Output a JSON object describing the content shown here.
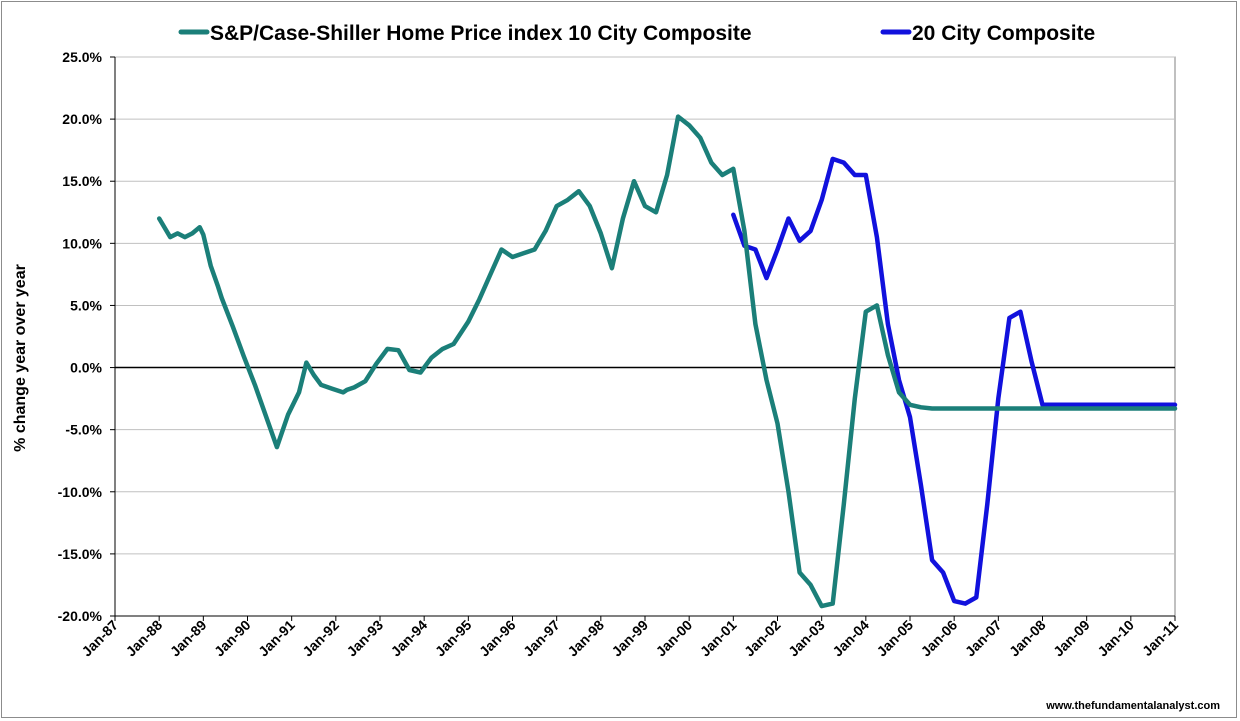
{
  "chart_data": {
    "type": "line",
    "title": "",
    "xlabel": "",
    "ylabel": "% change year over year",
    "ylim": [
      -20,
      25
    ],
    "y_ticks": [
      "25.0%",
      "20.0%",
      "15.0%",
      "10.0%",
      "5.0%",
      "0.0%",
      "-5.0%",
      "-10.0%",
      "-15.0%",
      "-20.0%"
    ],
    "x_ticks": [
      "Jan-87",
      "Jan-88",
      "Jan-89",
      "Jan-90",
      "Jan-91",
      "Jan-92",
      "Jan-93",
      "Jan-94",
      "Jan-95",
      "Jan-96",
      "Jan-97",
      "Jan-98",
      "Jan-99",
      "Jan-00",
      "Jan-01",
      "Jan-02",
      "Jan-03",
      "Jan-04",
      "Jan-05",
      "Jan-06",
      "Jan-07",
      "Jan-08",
      "Jan-09",
      "Jan-10",
      "Jan-11"
    ],
    "x_range": [
      "Jan-87",
      "Jan-11"
    ],
    "grid": "horizontal",
    "legend_position": "top",
    "colors": {
      "ten_city": "#1b7f79",
      "twenty_city": "#1111dd",
      "grid": "#c0c0c0",
      "zero_line": "#000000"
    },
    "series": [
      {
        "name": "S&P/Case-Shiller Home Price index 10 City Composite",
        "x": [
          "1988-01",
          "1988-04",
          "1988-06",
          "1988-08",
          "1988-10",
          "1988-12",
          "1989-01",
          "1989-03",
          "1989-05",
          "1989-06",
          "1989-09",
          "1989-12",
          "1990-03",
          "1990-06",
          "1990-09",
          "1990-12",
          "1991-03",
          "1991-05",
          "1991-07",
          "1991-09",
          "1991-12",
          "1992-03",
          "1992-04",
          "1992-06",
          "1992-09",
          "1992-12",
          "1993-03",
          "1993-06",
          "1993-09",
          "1993-12",
          "1994-03",
          "1994-06",
          "1994-09",
          "1994-11",
          "1995-01",
          "1995-04",
          "1995-07",
          "1995-10",
          "1996-01",
          "1996-04",
          "1996-07",
          "1996-10",
          "1997-01",
          "1997-04",
          "1997-07",
          "1997-10",
          "1998-01",
          "1998-04",
          "1998-07",
          "1998-10",
          "1999-01",
          "1999-04",
          "1999-07",
          "1999-10",
          "2000-01",
          "2000-04",
          "2000-07",
          "2000-10",
          "2001-01",
          "2001-04",
          "2001-07",
          "2001-10",
          "2002-01",
          "2002-04",
          "2002-07",
          "2002-10",
          "2003-01",
          "2003-04",
          "2003-07",
          "2003-10",
          "2004-01",
          "2004-04",
          "2004-07",
          "2004-10",
          "2005-01",
          "2005-04",
          "2005-07",
          "2005-10",
          "2006-01",
          "2006-04",
          "2006-07",
          "2006-10",
          "2007-01",
          "2007-04",
          "2007-07",
          "2007-10",
          "2008-01",
          "2008-04",
          "2008-07",
          "2008-10",
          "2009-01",
          "2009-04",
          "2009-07",
          "2009-10",
          "2010-01",
          "2010-04",
          "2010-07",
          "2010-10",
          "2011-01"
        ],
        "values": [
          12.0,
          10.5,
          10.8,
          10.5,
          10.8,
          11.3,
          10.7,
          8.2,
          6.5,
          5.6,
          3.3,
          0.9,
          -1.4,
          -3.9,
          -6.4,
          -3.8,
          -2.0,
          0.4,
          -0.6,
          -1.4,
          -1.7,
          -2.0,
          -1.8,
          -1.6,
          -1.1,
          0.3,
          1.5,
          1.4,
          -0.2,
          -0.4,
          0.8,
          1.5,
          1.9,
          2.8,
          3.7,
          5.5,
          7.5,
          9.5,
          8.9,
          9.2,
          9.5,
          11.0,
          13.0,
          13.5,
          14.2,
          13.0,
          10.8,
          8.0,
          12.0,
          15.0,
          13.0,
          12.5,
          15.5,
          20.2,
          19.5,
          18.5,
          16.5,
          15.5,
          16.0,
          11.0,
          3.5,
          -1.0,
          -4.5,
          -10.0,
          -16.5,
          -17.5,
          -19.2,
          -19.0,
          -11.0,
          -2.5,
          4.5,
          5.0,
          1.0,
          -2.0,
          -3.0,
          -3.2,
          -3.3,
          -3.3,
          -3.3,
          -3.3,
          -3.3,
          -3.3,
          -3.3,
          -3.3,
          -3.3,
          -3.3,
          -3.3,
          -3.3,
          -3.3,
          -3.3,
          -3.3,
          -3.3,
          -3.3,
          -3.3,
          -3.3,
          -3.3,
          -3.3,
          -3.3,
          -3.3
        ]
      },
      {
        "name": "20 City Composite",
        "x": [
          "2001-01",
          "2001-04",
          "2001-07",
          "2001-10",
          "2002-01",
          "2002-04",
          "2002-07",
          "2002-10",
          "2003-01",
          "2003-04",
          "2003-07",
          "2003-10",
          "2004-01",
          "2004-04",
          "2004-07",
          "2004-10",
          "2005-01",
          "2005-04",
          "2005-07",
          "2005-10",
          "2006-01",
          "2006-04",
          "2006-07",
          "2006-10",
          "2007-01",
          "2007-04",
          "2007-07",
          "2007-10",
          "2008-01",
          "2008-04",
          "2008-07",
          "2008-10",
          "2009-01",
          "2009-04",
          "2009-07",
          "2009-10",
          "2010-01",
          "2010-04",
          "2010-07",
          "2010-10",
          "2011-01"
        ],
        "values": [
          12.3,
          9.8,
          9.5,
          7.2,
          9.5,
          12.0,
          10.2,
          11.0,
          13.5,
          16.8,
          16.5,
          15.5,
          15.5,
          10.5,
          3.5,
          -1.0,
          -4.0,
          -9.5,
          -15.5,
          -16.5,
          -18.8,
          -19.0,
          -18.5,
          -11.0,
          -2.5,
          4.0,
          4.5,
          0.5,
          -3.0,
          -3.0,
          -3.0,
          -3.0,
          -3.0,
          -3.0,
          -3.0,
          -3.0,
          -3.0,
          -3.0,
          -3.0,
          -3.0,
          -3.0
        ]
      }
    ]
  },
  "source_credit": "www.thefundamentalanalyst.com"
}
